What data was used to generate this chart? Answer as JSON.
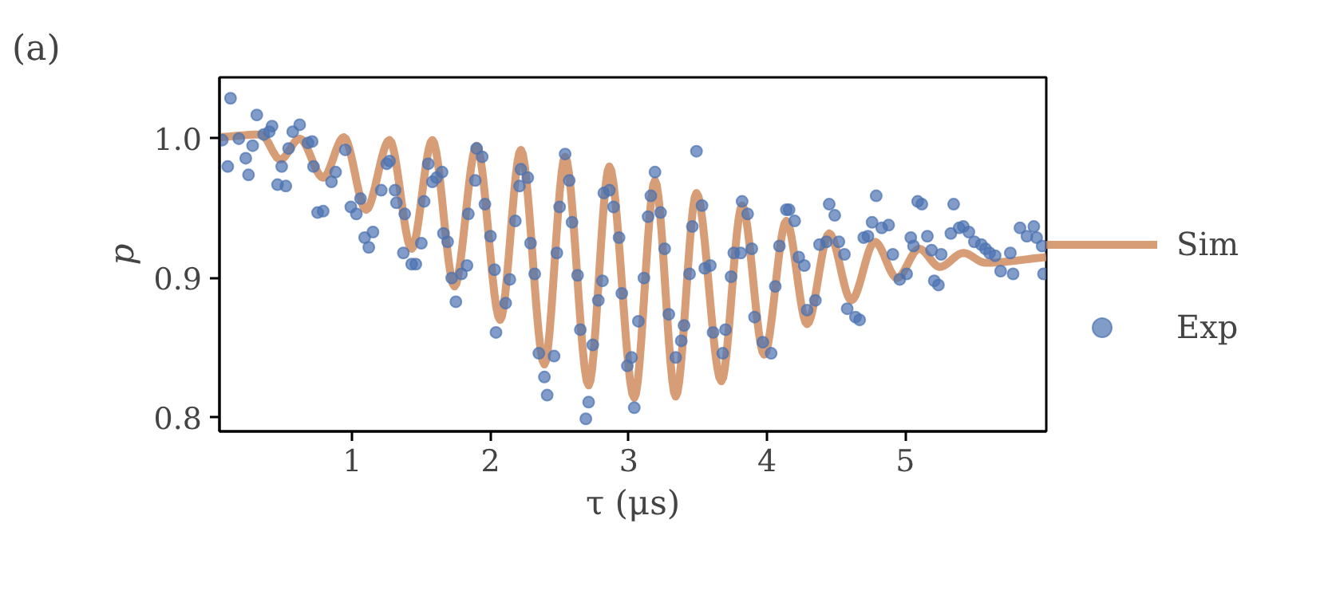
{
  "chart_data": {
    "type": "scatter",
    "title": "(a)",
    "xlabel": "τ (μs)",
    "ylabel": "p",
    "xlim": [
      0.04,
      6.02
    ],
    "ylim": [
      0.79,
      1.044
    ],
    "xticks": [
      1,
      2,
      3,
      4,
      5
    ],
    "yticks": [
      0.8,
      0.9,
      {
        "value": 1.0,
        "label": "1.0"
      }
    ],
    "legend": "right",
    "grid": false,
    "series": [
      {
        "name": "Sim",
        "type": "line",
        "color": "#d08c5e",
        "x": [
          0.04,
          0.34,
          0.48,
          0.62,
          0.79,
          0.94,
          1.1,
          1.27,
          1.43,
          1.58,
          1.74,
          1.9,
          2.07,
          2.22,
          2.39,
          2.54,
          2.71,
          2.86,
          3.04,
          3.19,
          3.34,
          3.49,
          3.67,
          3.82,
          3.98,
          4.14,
          4.29,
          4.45,
          4.61,
          4.78,
          4.94,
          5.1,
          5.25,
          5.42,
          5.58,
          6.02
        ],
        "values": [
          1.001,
          1.003,
          0.985,
          1.0,
          0.972,
          1.001,
          0.949,
          0.999,
          0.921,
          0.999,
          0.894,
          0.995,
          0.87,
          0.992,
          0.838,
          0.987,
          0.823,
          0.98,
          0.814,
          0.97,
          0.815,
          0.961,
          0.826,
          0.952,
          0.845,
          0.941,
          0.867,
          0.932,
          0.884,
          0.926,
          0.9,
          0.921,
          0.908,
          0.918,
          0.911,
          0.915
        ]
      },
      {
        "name": "Exp",
        "type": "scatter",
        "color": "#4c72b0",
        "marker": "circle",
        "x": [
          0.12,
          0.06,
          0.1,
          0.18,
          0.23,
          0.25,
          0.31,
          0.28,
          0.36,
          0.42,
          0.4,
          0.46,
          0.52,
          0.49,
          0.54,
          0.57,
          0.62,
          0.68,
          0.71,
          0.72,
          0.75,
          0.79,
          0.85,
          0.88,
          0.95,
          0.99,
          1.03,
          1.06,
          1.09,
          1.12,
          1.15,
          1.21,
          1.25,
          1.27,
          1.31,
          1.32,
          1.38,
          1.37,
          1.43,
          1.46,
          1.5,
          1.52,
          1.55,
          1.58,
          1.61,
          1.65,
          1.66,
          1.69,
          1.72,
          1.75,
          1.79,
          1.83,
          1.84,
          1.89,
          1.9,
          1.94,
          1.96,
          2.0,
          2.04,
          2.03,
          2.11,
          2.14,
          2.18,
          2.21,
          2.22,
          2.27,
          2.29,
          2.32,
          2.35,
          2.39,
          2.41,
          2.46,
          2.48,
          2.5,
          2.54,
          2.57,
          2.59,
          2.63,
          2.65,
          2.69,
          2.71,
          2.74,
          2.78,
          2.81,
          2.82,
          2.86,
          2.89,
          2.93,
          2.95,
          2.99,
          3.02,
          3.04,
          3.07,
          3.11,
          3.14,
          3.16,
          3.19,
          3.23,
          3.26,
          3.29,
          3.34,
          3.38,
          3.4,
          3.44,
          3.46,
          3.49,
          3.53,
          3.55,
          3.59,
          3.61,
          3.68,
          3.7,
          3.74,
          3.76,
          3.81,
          3.82,
          3.86,
          3.89,
          3.91,
          3.97,
          4.03,
          4.06,
          4.09,
          4.14,
          4.16,
          4.2,
          4.23,
          4.27,
          4.29,
          4.35,
          4.38,
          4.43,
          4.45,
          4.49,
          4.52,
          4.56,
          4.58,
          4.64,
          4.67,
          4.7,
          4.73,
          4.76,
          4.79,
          4.83,
          4.88,
          4.91,
          4.96,
          5.01,
          5.04,
          5.06,
          5.09,
          5.12,
          5.16,
          5.19,
          5.21,
          5.24,
          5.26,
          5.33,
          5.35,
          5.39,
          5.42,
          5.46,
          5.5,
          5.55,
          5.58,
          5.61,
          5.65,
          5.69,
          5.76,
          5.78,
          5.83,
          5.88,
          5.93,
          5.95,
          5.99,
          6.0
        ],
        "values": [
          1.029,
          0.999,
          0.98,
          1.0,
          0.986,
          0.974,
          1.017,
          0.995,
          1.003,
          1.009,
          1.005,
          0.967,
          0.966,
          0.98,
          0.993,
          1.005,
          1.01,
          0.997,
          0.998,
          0.98,
          0.947,
          0.948,
          0.969,
          0.976,
          0.992,
          0.951,
          0.946,
          0.957,
          0.929,
          0.922,
          0.933,
          0.963,
          0.982,
          0.984,
          0.963,
          0.954,
          0.946,
          0.918,
          0.91,
          0.91,
          0.925,
          0.955,
          0.982,
          0.969,
          0.972,
          0.976,
          0.932,
          0.926,
          0.9,
          0.883,
          0.903,
          0.909,
          0.946,
          0.97,
          0.993,
          0.987,
          0.953,
          0.93,
          0.861,
          0.906,
          0.882,
          0.899,
          0.941,
          0.966,
          0.978,
          0.972,
          0.925,
          0.903,
          0.846,
          0.829,
          0.816,
          0.844,
          0.918,
          0.951,
          0.989,
          0.97,
          0.94,
          0.902,
          0.863,
          0.799,
          0.811,
          0.852,
          0.884,
          0.898,
          0.961,
          0.963,
          0.951,
          0.929,
          0.889,
          0.837,
          0.843,
          0.807,
          0.869,
          0.9,
          0.944,
          0.959,
          0.976,
          0.947,
          0.921,
          0.874,
          0.843,
          0.855,
          0.866,
          0.903,
          0.937,
          0.991,
          0.952,
          0.907,
          0.909,
          0.861,
          0.846,
          0.863,
          0.901,
          0.918,
          0.918,
          0.955,
          0.946,
          0.921,
          0.872,
          0.854,
          0.846,
          0.894,
          0.923,
          0.949,
          0.949,
          0.941,
          0.915,
          0.909,
          0.877,
          0.884,
          0.924,
          0.926,
          0.953,
          0.945,
          0.926,
          0.917,
          0.878,
          0.872,
          0.87,
          0.929,
          0.93,
          0.94,
          0.959,
          0.936,
          0.938,
          0.917,
          0.899,
          0.903,
          0.929,
          0.923,
          0.955,
          0.953,
          0.93,
          0.92,
          0.898,
          0.895,
          0.917,
          0.932,
          0.953,
          0.936,
          0.937,
          0.933,
          0.926,
          0.924,
          0.921,
          0.918,
          0.916,
          0.905,
          0.918,
          0.903,
          0.936,
          0.93,
          0.937,
          0.929,
          0.923,
          0.903
        ]
      }
    ]
  }
}
